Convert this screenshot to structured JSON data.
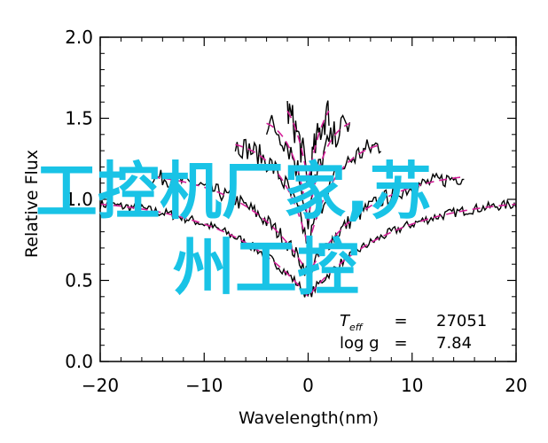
{
  "chart_data": {
    "type": "line",
    "xlabel": "Wavelength(nm)",
    "ylabel": "Relative Flux",
    "xlim": [
      -20,
      20
    ],
    "ylim": [
      0.0,
      2.0
    ],
    "x_ticks": [
      "−20",
      "−10",
      "0",
      "10",
      "20"
    ],
    "y_ticks": [
      "0.0",
      "0.5",
      "1.0",
      "1.5",
      "2.0"
    ],
    "grid": false,
    "model_line_color": "#d21e96",
    "observed_line_color": "#000000",
    "spectra": [
      {
        "offset": 0.0,
        "x_range": [
          -20,
          20
        ],
        "depth": 0.52
      },
      {
        "offset": 0.17,
        "x_range": [
          -15,
          15
        ],
        "depth": 0.55
      },
      {
        "offset": 0.37,
        "x_range": [
          -7,
          7
        ],
        "depth": 0.58
      },
      {
        "offset": 0.5,
        "x_range": [
          -4,
          4
        ],
        "depth": 0.55
      },
      {
        "offset": 0.68,
        "x_range": [
          -2,
          2
        ],
        "depth": 0.5
      }
    ],
    "annotations": [
      {
        "label": "T",
        "subscript": "eff",
        "equals": "=",
        "value": "27051"
      },
      {
        "label": "log g",
        "equals": "=",
        "value": "7.84"
      }
    ]
  },
  "watermark": {
    "line1": "工控机厂家,苏",
    "line2": "州工控"
  }
}
